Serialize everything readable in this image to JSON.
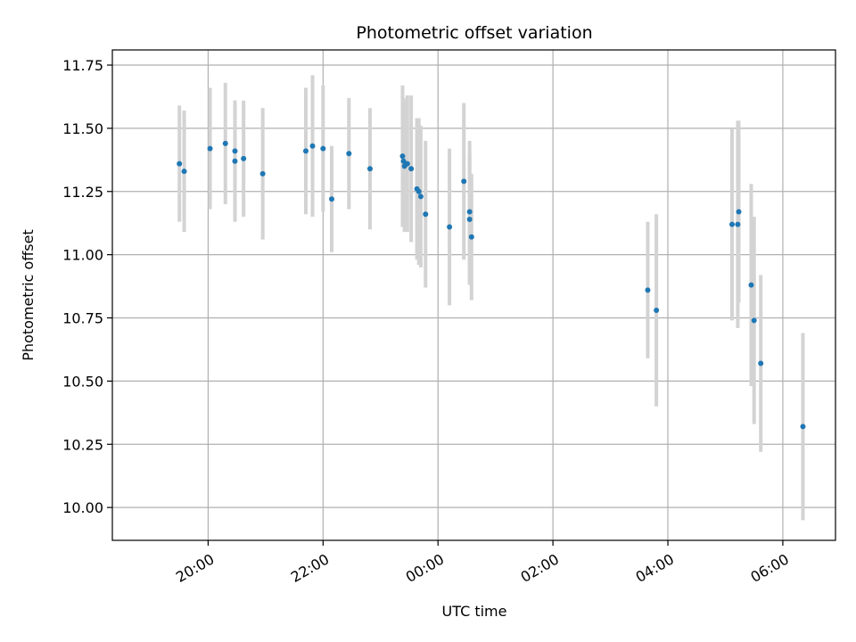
{
  "chart_data": {
    "type": "scatter",
    "title": "Photometric offset variation",
    "xlabel": "UTC time",
    "ylabel": "Photometric offset",
    "x_axis_type": "time",
    "x_range": [
      "18:20",
      "06:55"
    ],
    "ylim": [
      9.87,
      11.81
    ],
    "x_ticks": [
      "20:00",
      "22:00",
      "00:00",
      "02:00",
      "04:00",
      "06:00"
    ],
    "y_ticks": [
      "10.00",
      "10.25",
      "10.50",
      "10.75",
      "11.00",
      "11.25",
      "11.50",
      "11.75"
    ],
    "x_tick_rotation": 30,
    "grid": true,
    "marker_color": "#1f77b4",
    "errorbar_color": "#d3d3d3",
    "points": [
      {
        "t": "19:30",
        "y": 11.36,
        "err": 0.23
      },
      {
        "t": "19:35",
        "y": 11.33,
        "err": 0.24
      },
      {
        "t": "20:02",
        "y": 11.42,
        "err": 0.24
      },
      {
        "t": "20:18",
        "y": 11.44,
        "err": 0.24
      },
      {
        "t": "20:28",
        "y": 11.41,
        "err": 0.2
      },
      {
        "t": "20:28",
        "y": 11.37,
        "err": 0.24
      },
      {
        "t": "20:37",
        "y": 11.38,
        "err": 0.23
      },
      {
        "t": "20:57",
        "y": 11.32,
        "err": 0.26
      },
      {
        "t": "21:42",
        "y": 11.41,
        "err": 0.25
      },
      {
        "t": "21:49",
        "y": 11.43,
        "err": 0.28
      },
      {
        "t": "22:00",
        "y": 11.42,
        "err": 0.25
      },
      {
        "t": "22:09",
        "y": 11.22,
        "err": 0.21
      },
      {
        "t": "22:27",
        "y": 11.4,
        "err": 0.22
      },
      {
        "t": "22:49",
        "y": 11.34,
        "err": 0.24
      },
      {
        "t": "23:23",
        "y": 11.39,
        "err": 0.28
      },
      {
        "t": "23:24",
        "y": 11.37,
        "err": 0.25
      },
      {
        "t": "23:25",
        "y": 11.35,
        "err": 0.26
      },
      {
        "t": "23:28",
        "y": 11.36,
        "err": 0.27
      },
      {
        "t": "23:32",
        "y": 11.34,
        "err": 0.29
      },
      {
        "t": "23:38",
        "y": 11.26,
        "err": 0.28
      },
      {
        "t": "23:40",
        "y": 11.25,
        "err": 0.29
      },
      {
        "t": "23:42",
        "y": 11.23,
        "err": 0.28
      },
      {
        "t": "23:47",
        "y": 11.16,
        "err": 0.29
      },
      {
        "t": "00:12",
        "y": 11.11,
        "err": 0.31
      },
      {
        "t": "00:27",
        "y": 11.29,
        "err": 0.31
      },
      {
        "t": "00:33",
        "y": 11.17,
        "err": 0.28
      },
      {
        "t": "00:33",
        "y": 11.14,
        "err": 0.26
      },
      {
        "t": "00:35",
        "y": 11.07,
        "err": 0.25
      },
      {
        "t": "03:39",
        "y": 10.86,
        "err": 0.27
      },
      {
        "t": "03:48",
        "y": 10.78,
        "err": 0.38
      },
      {
        "t": "05:07",
        "y": 11.12,
        "err": 0.38
      },
      {
        "t": "05:13",
        "y": 11.12,
        "err": 0.41
      },
      {
        "t": "05:14",
        "y": 11.17,
        "err": 0.36
      },
      {
        "t": "05:27",
        "y": 10.88,
        "err": 0.4
      },
      {
        "t": "05:30",
        "y": 10.74,
        "err": 0.41
      },
      {
        "t": "05:37",
        "y": 10.57,
        "err": 0.35
      },
      {
        "t": "06:21",
        "y": 10.32,
        "err": 0.37
      }
    ]
  }
}
